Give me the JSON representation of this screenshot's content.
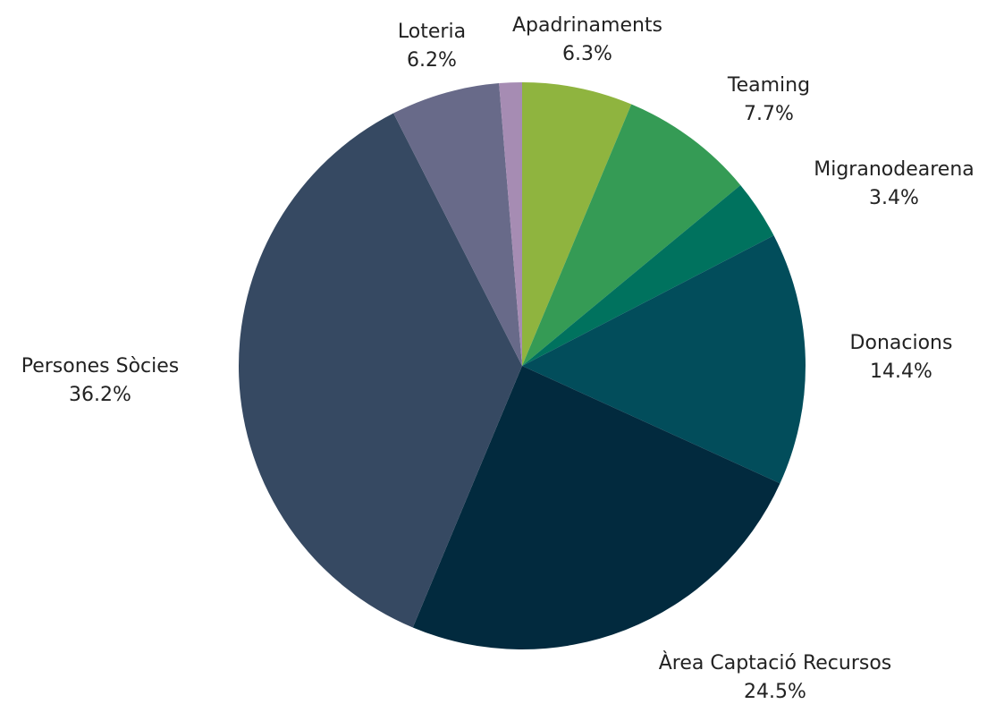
{
  "chart_data": {
    "type": "pie",
    "title": "",
    "start_angle_deg": 0,
    "direction": "clockwise",
    "slices": [
      {
        "label": "Apadrinaments",
        "value": 6.3,
        "display": "6.3%",
        "color": "#8fb43f"
      },
      {
        "label": "Teaming",
        "value": 7.7,
        "display": "7.7%",
        "color": "#359b55"
      },
      {
        "label": "Migranodearena",
        "value": 3.4,
        "display": "3.4%",
        "color": "#00725e"
      },
      {
        "label": "Donacions",
        "value": 14.4,
        "display": "14.4%",
        "color": "#024d5b"
      },
      {
        "label": "Àrea Captació Recursos",
        "value": 24.5,
        "display": "24.5%",
        "color": "#022a3e"
      },
      {
        "label": "Persones Sòcies",
        "value": 36.2,
        "display": "36.2%",
        "color": "#364962"
      },
      {
        "label": "Loteria",
        "value": 6.2,
        "display": "6.2%",
        "color": "#686a89"
      },
      {
        "label": "",
        "value": 1.3,
        "display": "",
        "color": "#a68cb3"
      }
    ]
  }
}
